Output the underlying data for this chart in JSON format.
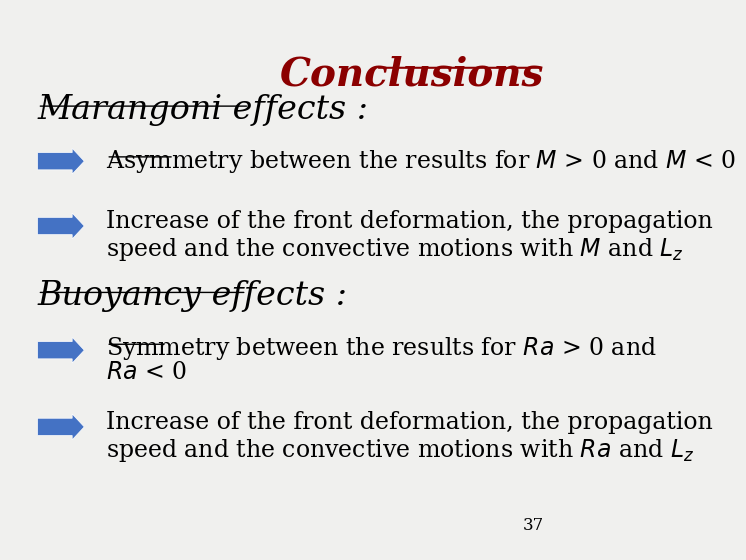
{
  "bg_color": "#f0f0ee",
  "title_text": "Conclusions",
  "title_color": "#8b0000",
  "title_fontsize": 28,
  "section1_text": "Marangoni effects :",
  "section2_text": "Buoyancy effects :",
  "section_fontsize": 24,
  "section_color": "#000000",
  "bullet1_line1": "Asymmetry between the results for $M$ > 0 and $M$ < 0",
  "bullet2_line1": "Increase of the front deformation, the propagation",
  "bullet2_line2": "speed and the convective motions with $M$ and $L_z$",
  "bullet3_line1": "Symmetry between the results for $Ra$ > 0 and",
  "bullet3_line2": "$Ra$ < 0",
  "bullet4_line1": "Increase of the front deformation, the propagation",
  "bullet4_line2": "speed and the convective motions with $Ra$ and $L_z$",
  "bullet_fontsize": 17,
  "bullet_color": "#000000",
  "arrow_color": "#4472c4",
  "page_num": "37",
  "page_fontsize": 12
}
